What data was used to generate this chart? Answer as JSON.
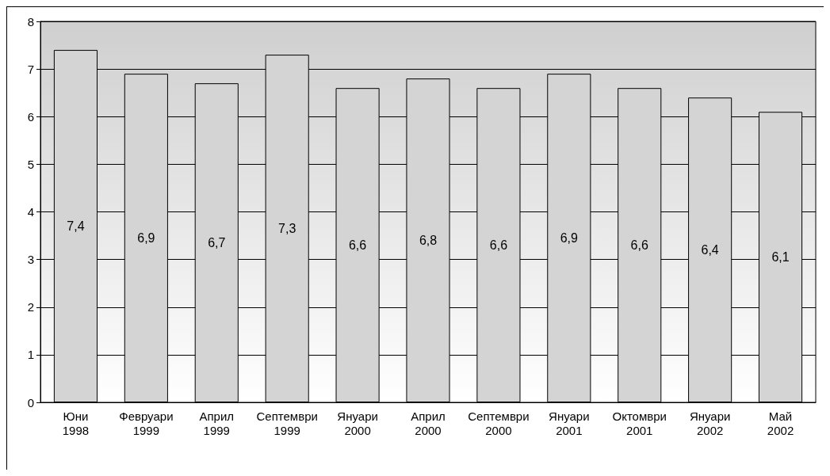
{
  "chart_data": {
    "type": "bar",
    "categories": [
      "Юни\n1998",
      "Февруари\n1999",
      "Април\n1999",
      "Септември\n1999",
      "Януари\n2000",
      "Април\n2000",
      "Септември\n2000",
      "Януари\n2001",
      "Октомври\n2001",
      "Януари\n2002",
      "Май\n2002"
    ],
    "values": [
      7.4,
      6.9,
      6.7,
      7.3,
      6.6,
      6.8,
      6.6,
      6.9,
      6.6,
      6.4,
      6.1
    ],
    "value_labels": [
      "7,4",
      "6,9",
      "6,7",
      "7,3",
      "6,6",
      "6,8",
      "6,6",
      "6,9",
      "6,6",
      "6,4",
      "6,1"
    ],
    "color": "#d4d4d4",
    "ylim": [
      0,
      8
    ],
    "yticks": [
      0,
      1,
      2,
      3,
      4,
      5,
      6,
      7,
      8
    ],
    "grid": "y"
  }
}
